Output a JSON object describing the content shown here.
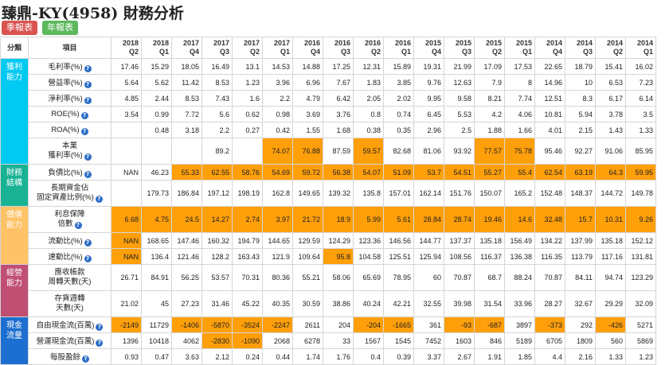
{
  "header": {
    "title": "臻鼎-KY(4958) 財務分析"
  },
  "buttons": {
    "quarter": "季報表",
    "annual": "年報表"
  },
  "colors": {
    "profit": "#00c9f2",
    "finance": "#19b394",
    "debt": "#ffc266",
    "operate": "#c04f73",
    "cash": "#1c6fd0",
    "highlight": "#ff9f0a"
  },
  "columns": {
    "category": "分類",
    "item": "項目",
    "periods": [
      [
        "2018",
        "Q2"
      ],
      [
        "2018",
        "Q1"
      ],
      [
        "2017",
        "Q4"
      ],
      [
        "2017",
        "Q3"
      ],
      [
        "2017",
        "Q2"
      ],
      [
        "2017",
        "Q1"
      ],
      [
        "2016",
        "Q4"
      ],
      [
        "2016",
        "Q3"
      ],
      [
        "2016",
        "Q2"
      ],
      [
        "2016",
        "Q1"
      ],
      [
        "2015",
        "Q4"
      ],
      [
        "2015",
        "Q3"
      ],
      [
        "2015",
        "Q2"
      ],
      [
        "2015",
        "Q1"
      ],
      [
        "2014",
        "Q4"
      ],
      [
        "2014",
        "Q3"
      ],
      [
        "2014",
        "Q2"
      ],
      [
        "2014",
        "Q1"
      ]
    ]
  },
  "categories": [
    {
      "label": [
        "獲利",
        "能力"
      ],
      "color": "#00c9f2",
      "span": 6
    },
    {
      "label": [
        "財務",
        "結構"
      ],
      "color": "#19b394",
      "span": 2
    },
    {
      "label": [
        "償債",
        "能力"
      ],
      "color": "#ffc266",
      "span": 3
    },
    {
      "label": [
        "經營",
        "能力"
      ],
      "color": "#c04f73",
      "span": 2
    },
    {
      "label": [
        "現金",
        "流量"
      ],
      "color": "#1c6fd0",
      "span": 3
    }
  ],
  "rows": [
    {
      "label": [
        "毛利率(%)"
      ],
      "info": true,
      "values": [
        "17.46",
        "15.29",
        "18.05",
        "16.49",
        "13.1",
        "14.53",
        "14.88",
        "17.25",
        "12.31",
        "15.89",
        "19.31",
        "21.99",
        "17.09",
        "17.53",
        "22.65",
        "18.79",
        "15.41",
        "16.02"
      ],
      "hl": []
    },
    {
      "label": [
        "營益率(%)"
      ],
      "info": true,
      "values": [
        "5.64",
        "5.62",
        "11.42",
        "8.53",
        "1.23",
        "3.96",
        "6.96",
        "7.67",
        "1.83",
        "3.85",
        "9.76",
        "12.63",
        "7.9",
        "8",
        "14.96",
        "10",
        "6.53",
        "7.23"
      ],
      "hl": []
    },
    {
      "label": [
        "淨利率(%)"
      ],
      "info": true,
      "values": [
        "4.85",
        "2.44",
        "8.53",
        "7.43",
        "1.6",
        "2.2",
        "4.79",
        "6.42",
        "2.05",
        "2.02",
        "9.95",
        "9.58",
        "8.21",
        "7.74",
        "12.51",
        "8.3",
        "6.17",
        "6.14"
      ],
      "hl": []
    },
    {
      "label": [
        "ROE(%)"
      ],
      "info": true,
      "values": [
        "3.54",
        "0.99",
        "7.72",
        "5.6",
        "0.62",
        "0.98",
        "3.69",
        "3.76",
        "0.8",
        "0.74",
        "6.45",
        "5.53",
        "4.2",
        "4.06",
        "10.81",
        "5.94",
        "3.78",
        "3.5"
      ],
      "hl": []
    },
    {
      "label": [
        "ROA(%)"
      ],
      "info": true,
      "values": [
        "",
        "0.48",
        "3.18",
        "2.2",
        "0.27",
        "0.42",
        "1.55",
        "1.68",
        "0.38",
        "0.35",
        "2.96",
        "2.5",
        "1.88",
        "1.66",
        "4.01",
        "2.15",
        "1.43",
        "1.33"
      ],
      "hl": []
    },
    {
      "label": [
        "本業",
        "獲利率(%)"
      ],
      "info": true,
      "tall": true,
      "values": [
        "",
        "",
        "",
        "89.2",
        "",
        "74.07",
        "76.88",
        "87.59",
        "59.57",
        "82.68",
        "81.06",
        "93.92",
        "77.57",
        "75.78",
        "95.46",
        "92.27",
        "91.06",
        "85.95"
      ],
      "hl": [
        5,
        6,
        8,
        12,
        13
      ]
    },
    {
      "label": [
        "負債比(%)"
      ],
      "info": true,
      "values": [
        "NAN",
        "46.23",
        "55.33",
        "62.55",
        "58.76",
        "54.69",
        "59.72",
        "56.38",
        "54.07",
        "51.09",
        "53.7",
        "54.51",
        "55.27",
        "55.4",
        "62.54",
        "63.19",
        "64.3",
        "59.95"
      ],
      "hl": [
        2,
        3,
        4,
        5,
        6,
        7,
        8,
        9,
        10,
        11,
        12,
        13,
        14,
        15,
        16,
        17
      ]
    },
    {
      "label": [
        "長期資金佔",
        "固定資產比例(%)"
      ],
      "info": true,
      "tall": true,
      "values": [
        "",
        "179.73",
        "186.84",
        "197.12",
        "198.19",
        "162.8",
        "149.65",
        "139.32",
        "135.8",
        "157.01",
        "162.14",
        "151.76",
        "150.07",
        "165.2",
        "152.48",
        "148.37",
        "144.72",
        "149.78"
      ],
      "hl": []
    },
    {
      "label": [
        "利息保障",
        "倍數"
      ],
      "info": true,
      "tall": true,
      "values": [
        "6.68",
        "4.75",
        "24.5",
        "14.27",
        "2.74",
        "3.97",
        "21.72",
        "18.9",
        "5.99",
        "5.61",
        "28.84",
        "28.74",
        "19.46",
        "14.6",
        "32.48",
        "15.7",
        "10.31",
        "9.26"
      ],
      "hl": [
        0,
        1,
        2,
        3,
        4,
        5,
        6,
        7,
        8,
        9,
        10,
        11,
        12,
        13,
        14,
        15,
        16,
        17
      ]
    },
    {
      "label": [
        "流動比(%)"
      ],
      "info": true,
      "values": [
        "NAN",
        "168.65",
        "147.46",
        "160.32",
        "194.79",
        "144.65",
        "129.59",
        "124.29",
        "123.36",
        "146.56",
        "144.77",
        "137.37",
        "135.18",
        "156.49",
        "134.22",
        "137.99",
        "135.18",
        "152.12"
      ],
      "hl": [
        0
      ]
    },
    {
      "label": [
        "速動比(%)"
      ],
      "info": true,
      "values": [
        "NAN",
        "136.4",
        "121.46",
        "128.2",
        "163.43",
        "121.9",
        "109.64",
        "95.8",
        "104.58",
        "125.51",
        "125.94",
        "108.56",
        "116.37",
        "136.38",
        "116.35",
        "113.79",
        "117.16",
        "131.81"
      ],
      "hl": [
        0,
        7
      ]
    },
    {
      "label": [
        "應收帳款",
        "周轉天數(天)"
      ],
      "info": false,
      "tall": true,
      "values": [
        "26.71",
        "84.91",
        "56.25",
        "53.57",
        "70.31",
        "80.36",
        "55.21",
        "58.06",
        "65.69",
        "78.95",
        "60",
        "70.87",
        "68.7",
        "88.24",
        "70.87",
        "84.11",
        "94.74",
        "123.29"
      ],
      "hl": []
    },
    {
      "label": [
        "存貨週轉",
        "天數(天)"
      ],
      "info": false,
      "tall": true,
      "values": [
        "21.02",
        "45",
        "27.23",
        "31.46",
        "45.22",
        "40.35",
        "30.59",
        "38.86",
        "40.24",
        "42.21",
        "32.55",
        "39.98",
        "31.54",
        "33.96",
        "28.27",
        "32.67",
        "29.29",
        "32.09"
      ],
      "hl": []
    },
    {
      "label": [
        "自由現金流(百萬)"
      ],
      "info": true,
      "values": [
        "-2149",
        "11729",
        "-1406",
        "-5870",
        "-3524",
        "-2247",
        "2611",
        "204",
        "-204",
        "-1665",
        "361",
        "-93",
        "-687",
        "3897",
        "-373",
        "292",
        "-426",
        "5271"
      ],
      "hl": [
        0,
        2,
        3,
        4,
        5,
        8,
        9,
        11,
        12,
        14,
        16
      ]
    },
    {
      "label": [
        "營運現金流(百萬)"
      ],
      "info": true,
      "values": [
        "1396",
        "10418",
        "4062",
        "-2830",
        "-1090",
        "2068",
        "6278",
        "33",
        "1567",
        "1545",
        "7452",
        "1603",
        "846",
        "5189",
        "6705",
        "1809",
        "560",
        "5869"
      ],
      "hl": [
        3,
        4
      ]
    },
    {
      "label": [
        "每股盈餘"
      ],
      "info": true,
      "values": [
        "0.93",
        "0.47",
        "3.63",
        "2.12",
        "0.24",
        "0.44",
        "1.74",
        "1.76",
        "0.4",
        "0.39",
        "3.37",
        "2.67",
        "1.91",
        "1.85",
        "4.4",
        "2.16",
        "1.33",
        "1.23"
      ],
      "hl": []
    }
  ]
}
